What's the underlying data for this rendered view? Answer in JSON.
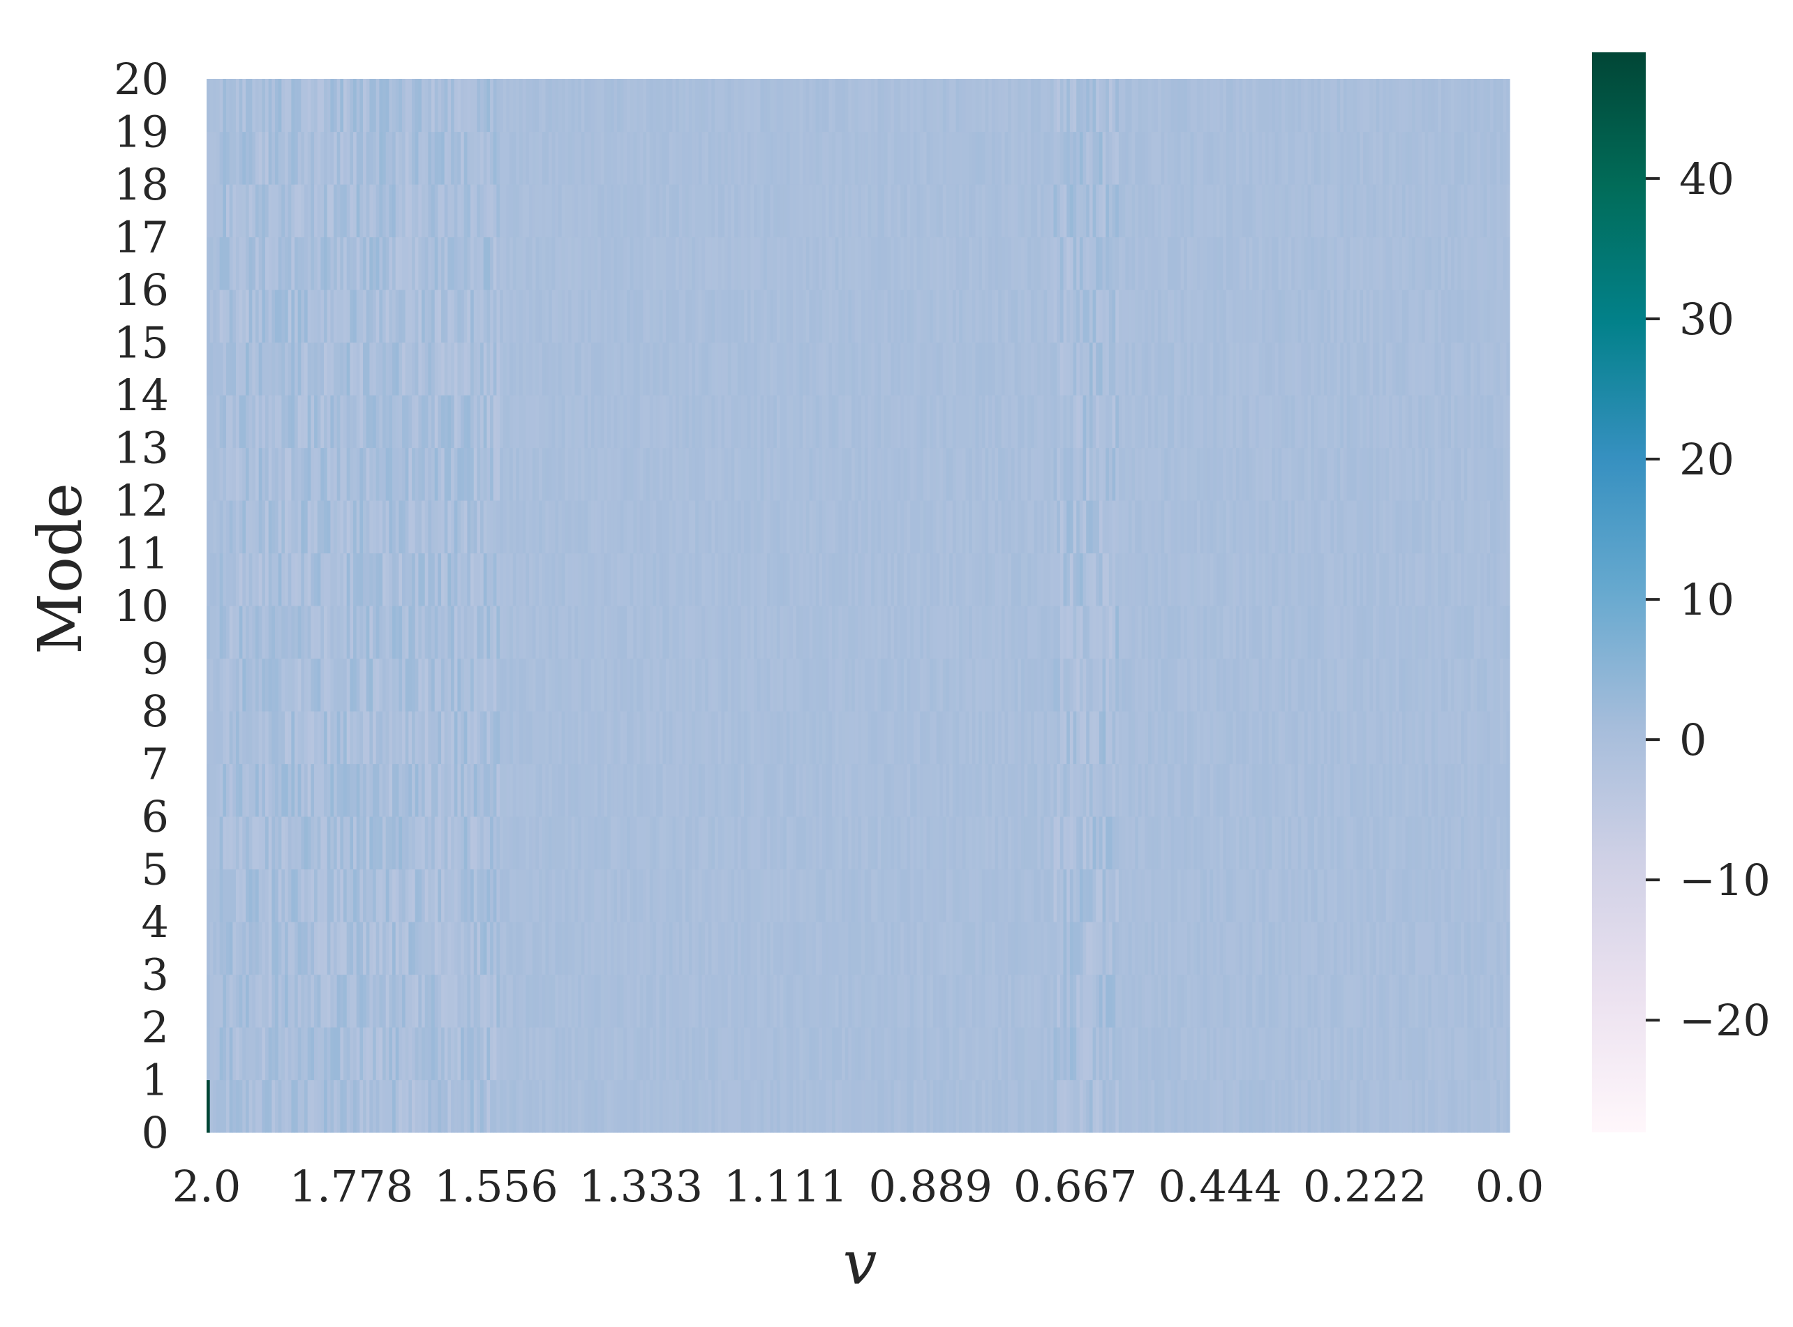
{
  "chart_data": {
    "type": "heatmap",
    "title": "",
    "xlabel": "v",
    "ylabel": "Mode",
    "x_range": [
      2.0,
      0.0
    ],
    "x_tick_labels": [
      "2.0",
      "1.778",
      "1.556",
      "1.333",
      "1.111",
      "0.889",
      "0.667",
      "0.444",
      "0.222",
      "0.0"
    ],
    "y_tick_labels": [
      "0",
      "1",
      "2",
      "3",
      "4",
      "5",
      "6",
      "7",
      "8",
      "9",
      "10",
      "11",
      "12",
      "13",
      "14",
      "15",
      "16",
      "17",
      "18",
      "19",
      "20"
    ],
    "modes": 20,
    "columns": 400,
    "colorbar": {
      "range": [
        -28,
        49
      ],
      "ticks": [
        40,
        30,
        20,
        10,
        0,
        -10,
        -20
      ],
      "tick_labels": [
        "40",
        "30",
        "20",
        "10",
        "0",
        "−10",
        "−20"
      ],
      "colormap": "PuBuGn",
      "colormap_stops": [
        "#fff7fb",
        "#ece2f0",
        "#d0d1e6",
        "#a6bddb",
        "#67a9cf",
        "#3690c0",
        "#02818a",
        "#016c59",
        "#014636"
      ]
    },
    "values_note": "Nearly all cells lie within about -3 to 3 (color ~ #a9bfdd); mode 0 at v = 2.0 spikes to about 49.",
    "peak": {
      "mode": 0,
      "v": 2.0,
      "value": 49
    },
    "active_bands_v": [
      [
        1.98,
        1.55
      ],
      [
        0.7,
        0.6
      ]
    ]
  }
}
